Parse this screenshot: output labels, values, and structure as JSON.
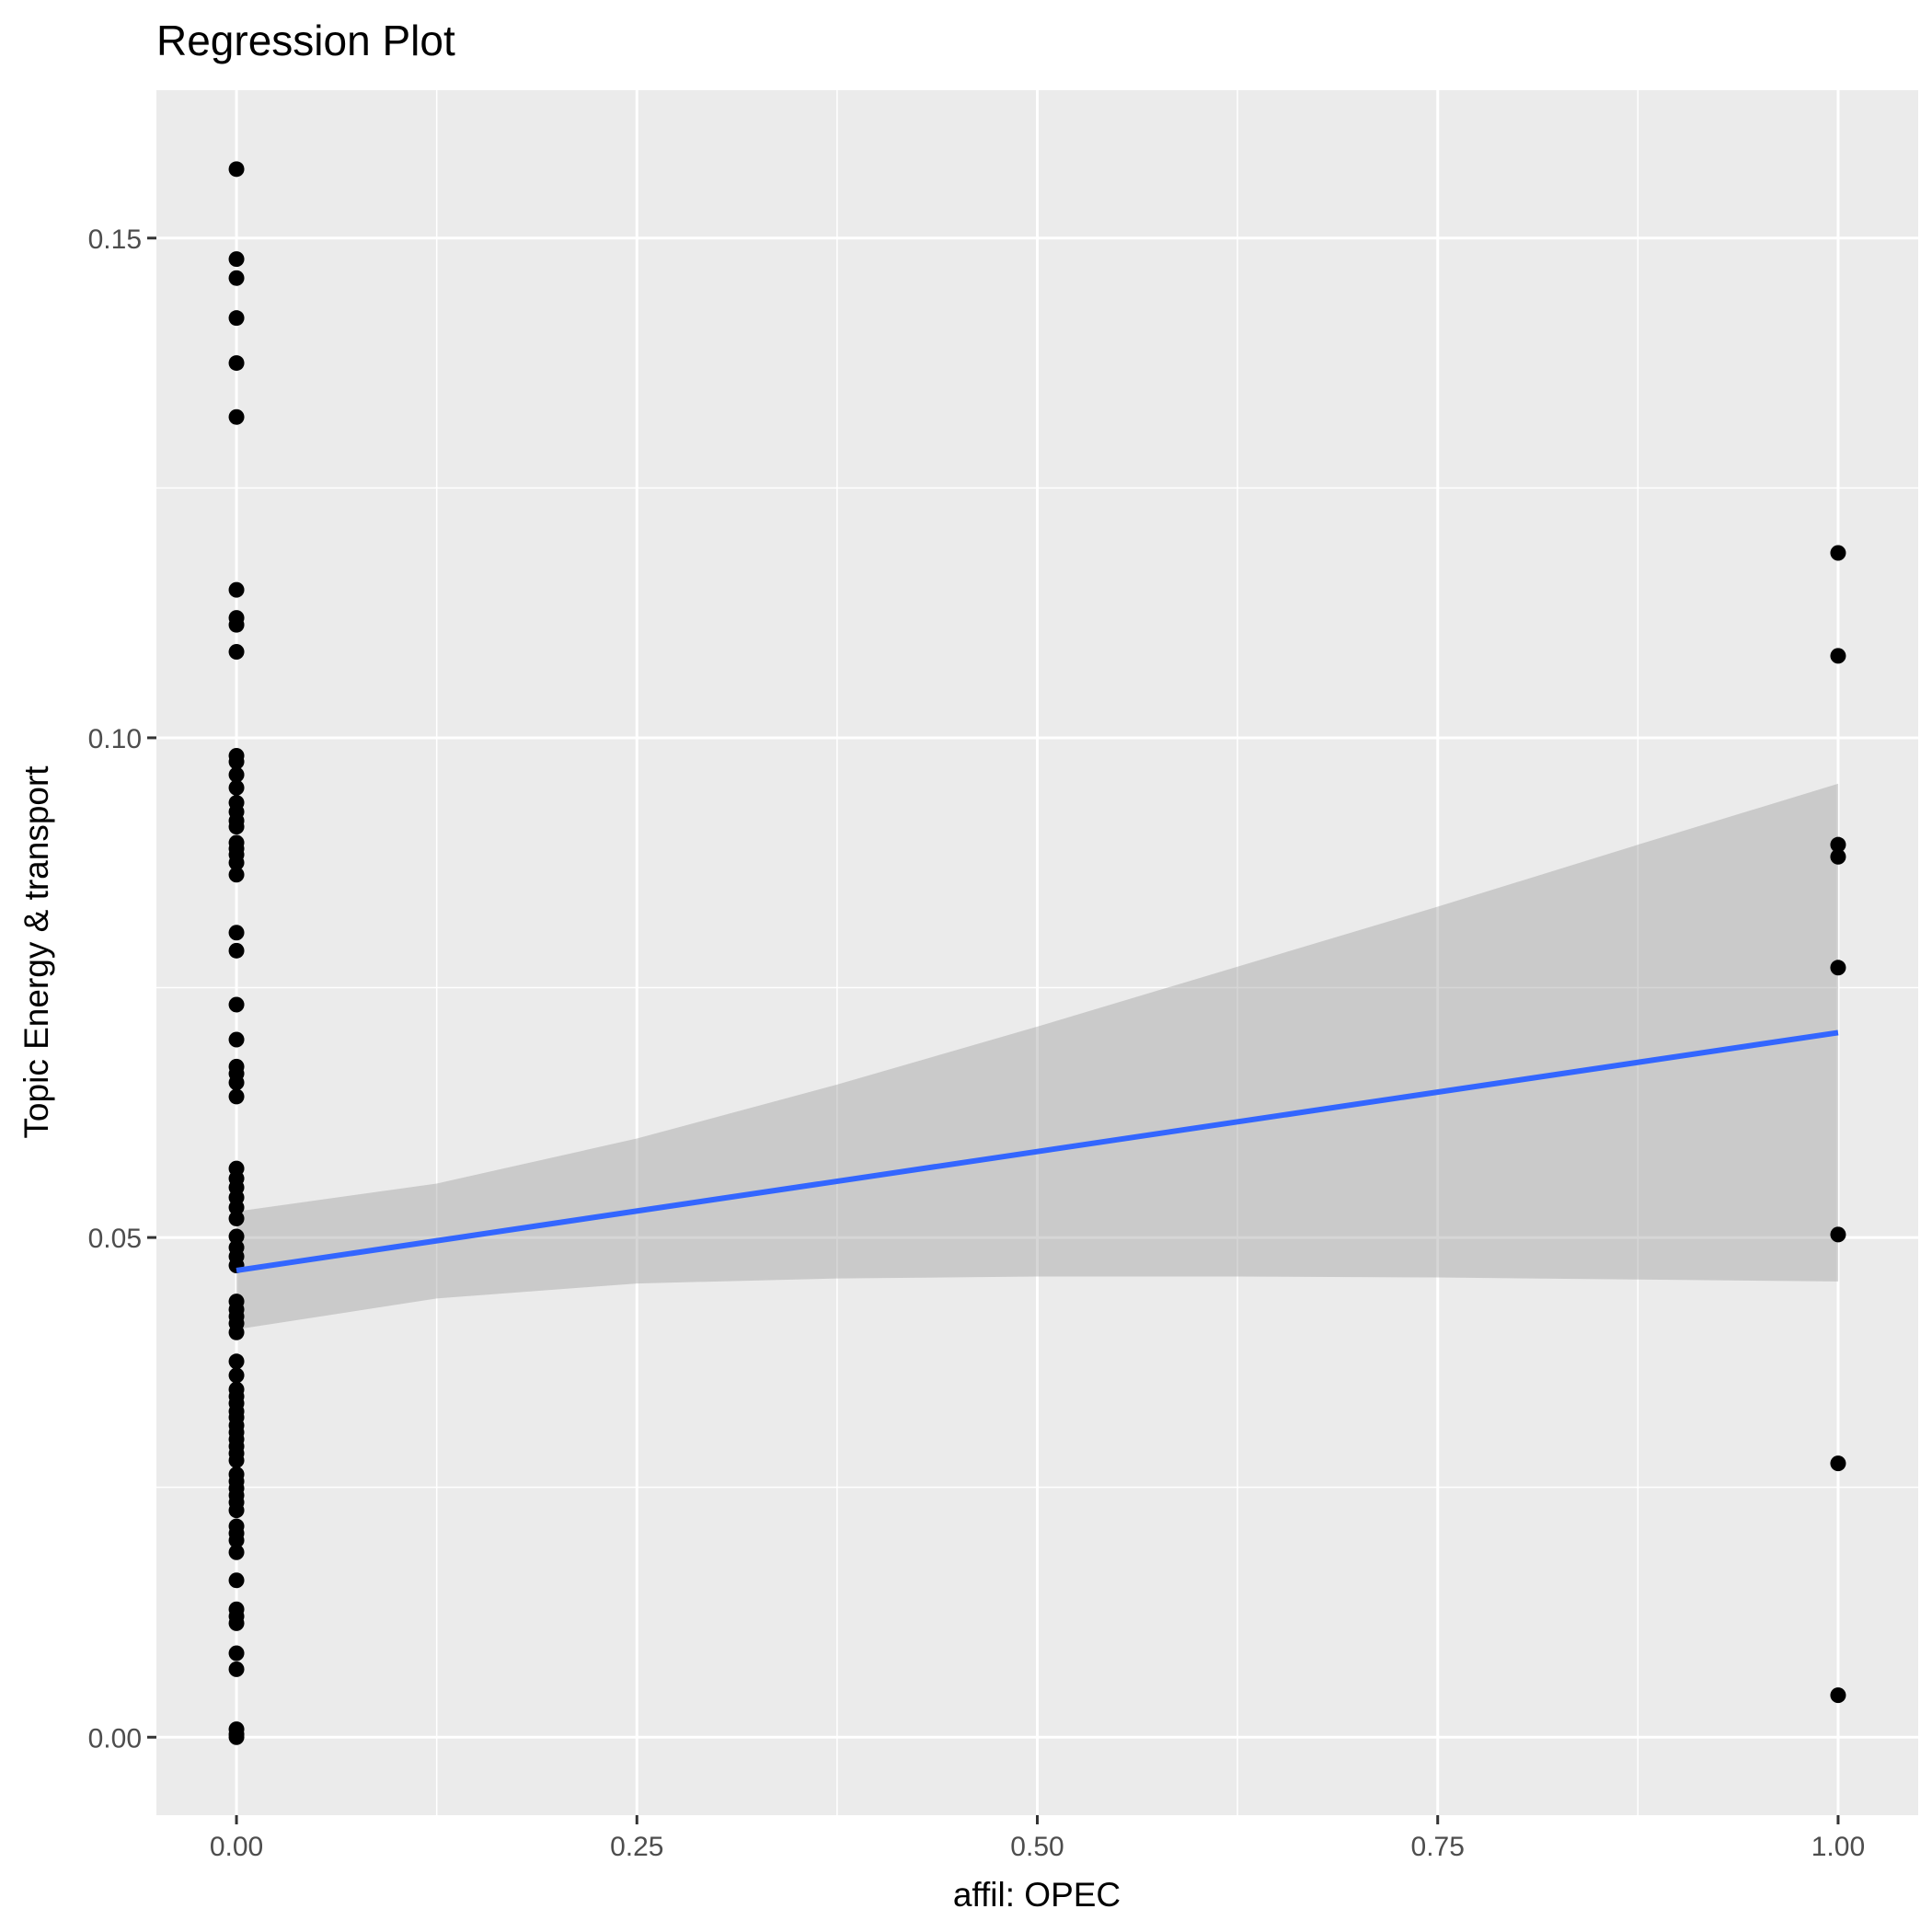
{
  "chart_data": {
    "type": "scatter",
    "title": "Regression Plot",
    "xlabel": "affil: OPEC",
    "ylabel": "Topic Energy & transport",
    "xlim": [
      -0.05,
      1.05
    ],
    "ylim": [
      -0.0078,
      0.1648
    ],
    "xticks": [
      0,
      0.25,
      0.5,
      0.75,
      1
    ],
    "xtick_labels": [
      "0.00",
      "0.25",
      "0.50",
      "0.75",
      "1.00"
    ],
    "yticks": [
      0,
      0.05,
      0.1,
      0.15
    ],
    "ytick_labels": [
      "0.00",
      "0.05",
      "0.10",
      "0.15"
    ],
    "grid": true,
    "colors": {
      "panel": "#EBEBEB",
      "grid": "#FFFFFF",
      "points": "#000000",
      "fit": "#3366FF",
      "band": "#999999"
    },
    "points": {
      "x0_y": [
        0.1569,
        0.1479,
        0.146,
        0.142,
        0.1375,
        0.1321,
        0.1148,
        0.112,
        0.1113,
        0.1086,
        0.0982,
        0.0976,
        0.0963,
        0.095,
        0.0935,
        0.0926,
        0.0917,
        0.0911,
        0.0895,
        0.0889,
        0.0883,
        0.0875,
        0.0863,
        0.0805,
        0.0787,
        0.0733,
        0.0698,
        0.0671,
        0.0664,
        0.0655,
        0.0641,
        0.0569,
        0.0559,
        0.055,
        0.054,
        0.053,
        0.0519,
        0.0501,
        0.049,
        0.0481,
        0.0472,
        0.0436,
        0.0428,
        0.0421,
        0.0414,
        0.0405,
        0.0376,
        0.0362,
        0.0348,
        0.0341,
        0.0334,
        0.0326,
        0.032,
        0.0312,
        0.0305,
        0.0298,
        0.0291,
        0.0284,
        0.0277,
        0.0263,
        0.0256,
        0.0249,
        0.0242,
        0.0235,
        0.0227,
        0.0211,
        0.0204,
        0.0197,
        0.0185,
        0.0157,
        0.0128,
        0.0121,
        0.0114,
        0.0084,
        0.0068,
        0.0008,
        0.0003,
        0.0
      ],
      "x1_y": [
        0.1185,
        0.1082,
        0.0893,
        0.0881,
        0.077,
        0.0503,
        0.0274,
        0.0042
      ]
    },
    "fit": {
      "intercept": 0.0467,
      "slope": 0.0238
    },
    "band": {
      "x": [
        0,
        0.125,
        0.25,
        0.375,
        0.5,
        0.625,
        0.75,
        0.875,
        1
      ],
      "lower": [
        0.0408,
        0.0439,
        0.0454,
        0.0459,
        0.0461,
        0.0461,
        0.046,
        0.0458,
        0.0456
      ],
      "upper": [
        0.0526,
        0.0554,
        0.0599,
        0.0653,
        0.0711,
        0.0771,
        0.0831,
        0.0893,
        0.0954
      ]
    }
  }
}
